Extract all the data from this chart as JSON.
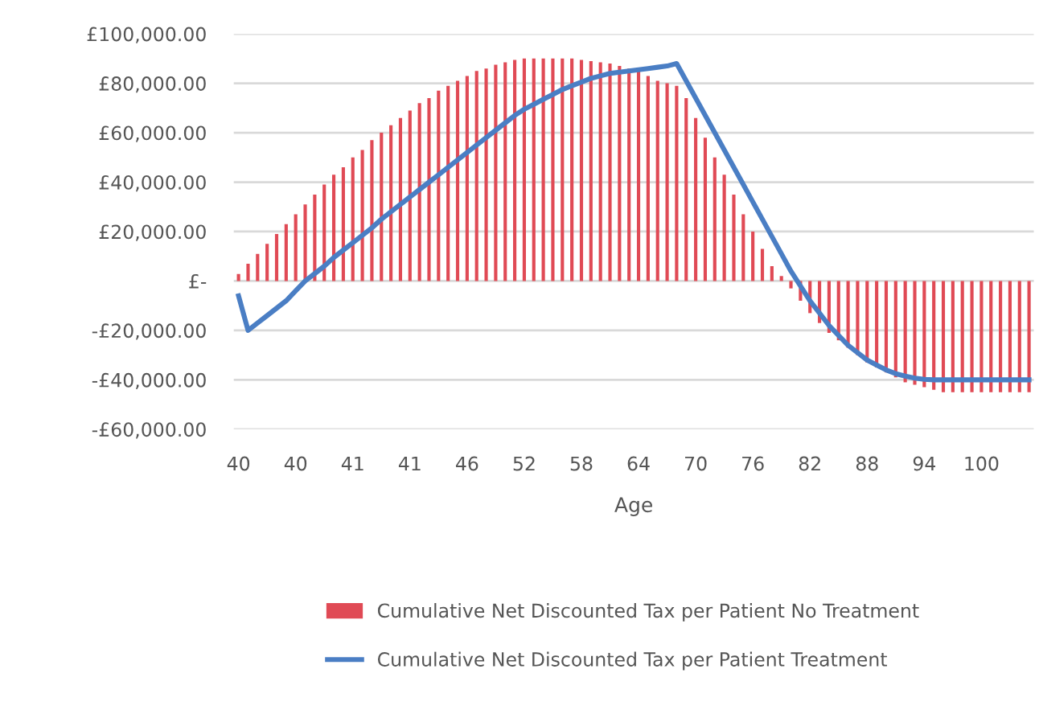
{
  "chart_data": {
    "type": "bar",
    "xlabel": "Age",
    "categories": [
      "40",
      null,
      null,
      null,
      null,
      null,
      "40",
      null,
      null,
      null,
      null,
      null,
      "41",
      null,
      null,
      null,
      null,
      null,
      "41",
      null,
      null,
      null,
      null,
      null,
      "46",
      null,
      null,
      null,
      null,
      null,
      "52",
      null,
      null,
      null,
      null,
      null,
      "58",
      null,
      null,
      null,
      null,
      null,
      "64",
      null,
      null,
      null,
      null,
      null,
      "70",
      null,
      null,
      null,
      null,
      null,
      "76",
      null,
      null,
      null,
      null,
      null,
      "82",
      null,
      null,
      null,
      null,
      null,
      "88",
      null,
      null,
      null,
      null,
      null,
      "94",
      null,
      null,
      null,
      null,
      null,
      "100",
      null,
      null,
      null,
      null,
      null
    ],
    "series": [
      {
        "name": "Cumulative Net Discounted Tax per Patient No Treatment",
        "color": "#e04a55",
        "values": [
          2800,
          7000,
          11000,
          15000,
          19000,
          23000,
          27000,
          31000,
          35000,
          39000,
          43000,
          46000,
          50000,
          53000,
          57000,
          60000,
          63000,
          66000,
          69000,
          72000,
          74000,
          77000,
          79000,
          81000,
          83000,
          85000,
          86000,
          87500,
          88500,
          89500,
          90000,
          90000,
          90000,
          90000,
          90000,
          90000,
          89500,
          89000,
          88500,
          88000,
          87000,
          86000,
          85000,
          83000,
          81000,
          80000,
          79000,
          74000,
          66000,
          58000,
          50000,
          43000,
          35000,
          27000,
          20000,
          13000,
          6000,
          2000,
          -3000,
          -8000,
          -13000,
          -17000,
          -21000,
          -24000,
          -27000,
          -30000,
          -33000,
          -35000,
          -37000,
          -39000,
          -41000,
          -42000,
          -43000,
          -44000,
          -45000,
          -45000,
          -45000,
          -45000,
          -45000,
          -45000,
          -45000,
          -45000,
          -45000,
          -45000
        ]
      },
      {
        "name": "Cumulative Net Discounted Tax per Patient Treatment",
        "type": "line",
        "color": "#4a7ec4",
        "values": [
          -6000,
          -20000,
          -17000,
          -14000,
          -11000,
          -8000,
          -4000,
          0,
          3000,
          6000,
          9500,
          12500,
          15500,
          18500,
          21500,
          25000,
          28000,
          31000,
          34000,
          37000,
          40000,
          43000,
          46000,
          49000,
          52000,
          55000,
          58000,
          61000,
          64000,
          67000,
          69500,
          71500,
          73500,
          75500,
          77500,
          79000,
          80500,
          82000,
          83000,
          84000,
          84500,
          85000,
          85500,
          86000,
          86500,
          87000,
          88000,
          81000,
          74000,
          67000,
          60000,
          53000,
          46000,
          39000,
          32000,
          25000,
          18000,
          11000,
          4000,
          -2000,
          -8000,
          -13000,
          -18000,
          -22000,
          -26000,
          -29000,
          -32000,
          -34000,
          -36000,
          -37500,
          -38500,
          -39300,
          -39800,
          -40000,
          -40000,
          -40000,
          -40000,
          -40000,
          -40000,
          -40000,
          -40000,
          -40000,
          -40000,
          -40000
        ]
      }
    ],
    "ylim": [
      -60000,
      100000
    ],
    "yticks": [
      {
        "value": 100000,
        "label": "£100,000.00"
      },
      {
        "value": 80000,
        "label": "£80,000.00"
      },
      {
        "value": 60000,
        "label": "£60,000.00"
      },
      {
        "value": 40000,
        "label": "£40,000.00"
      },
      {
        "value": 20000,
        "label": "£20,000.00"
      },
      {
        "value": 0,
        "label": "£-"
      },
      {
        "value": -20000,
        "label": "-£20,000.00"
      },
      {
        "value": -40000,
        "label": "-£40,000.00"
      },
      {
        "value": -60000,
        "label": "-£60,000.00"
      }
    ],
    "grid": "y",
    "legend": "bottom",
    "line_style": "solid",
    "marker": "none"
  }
}
